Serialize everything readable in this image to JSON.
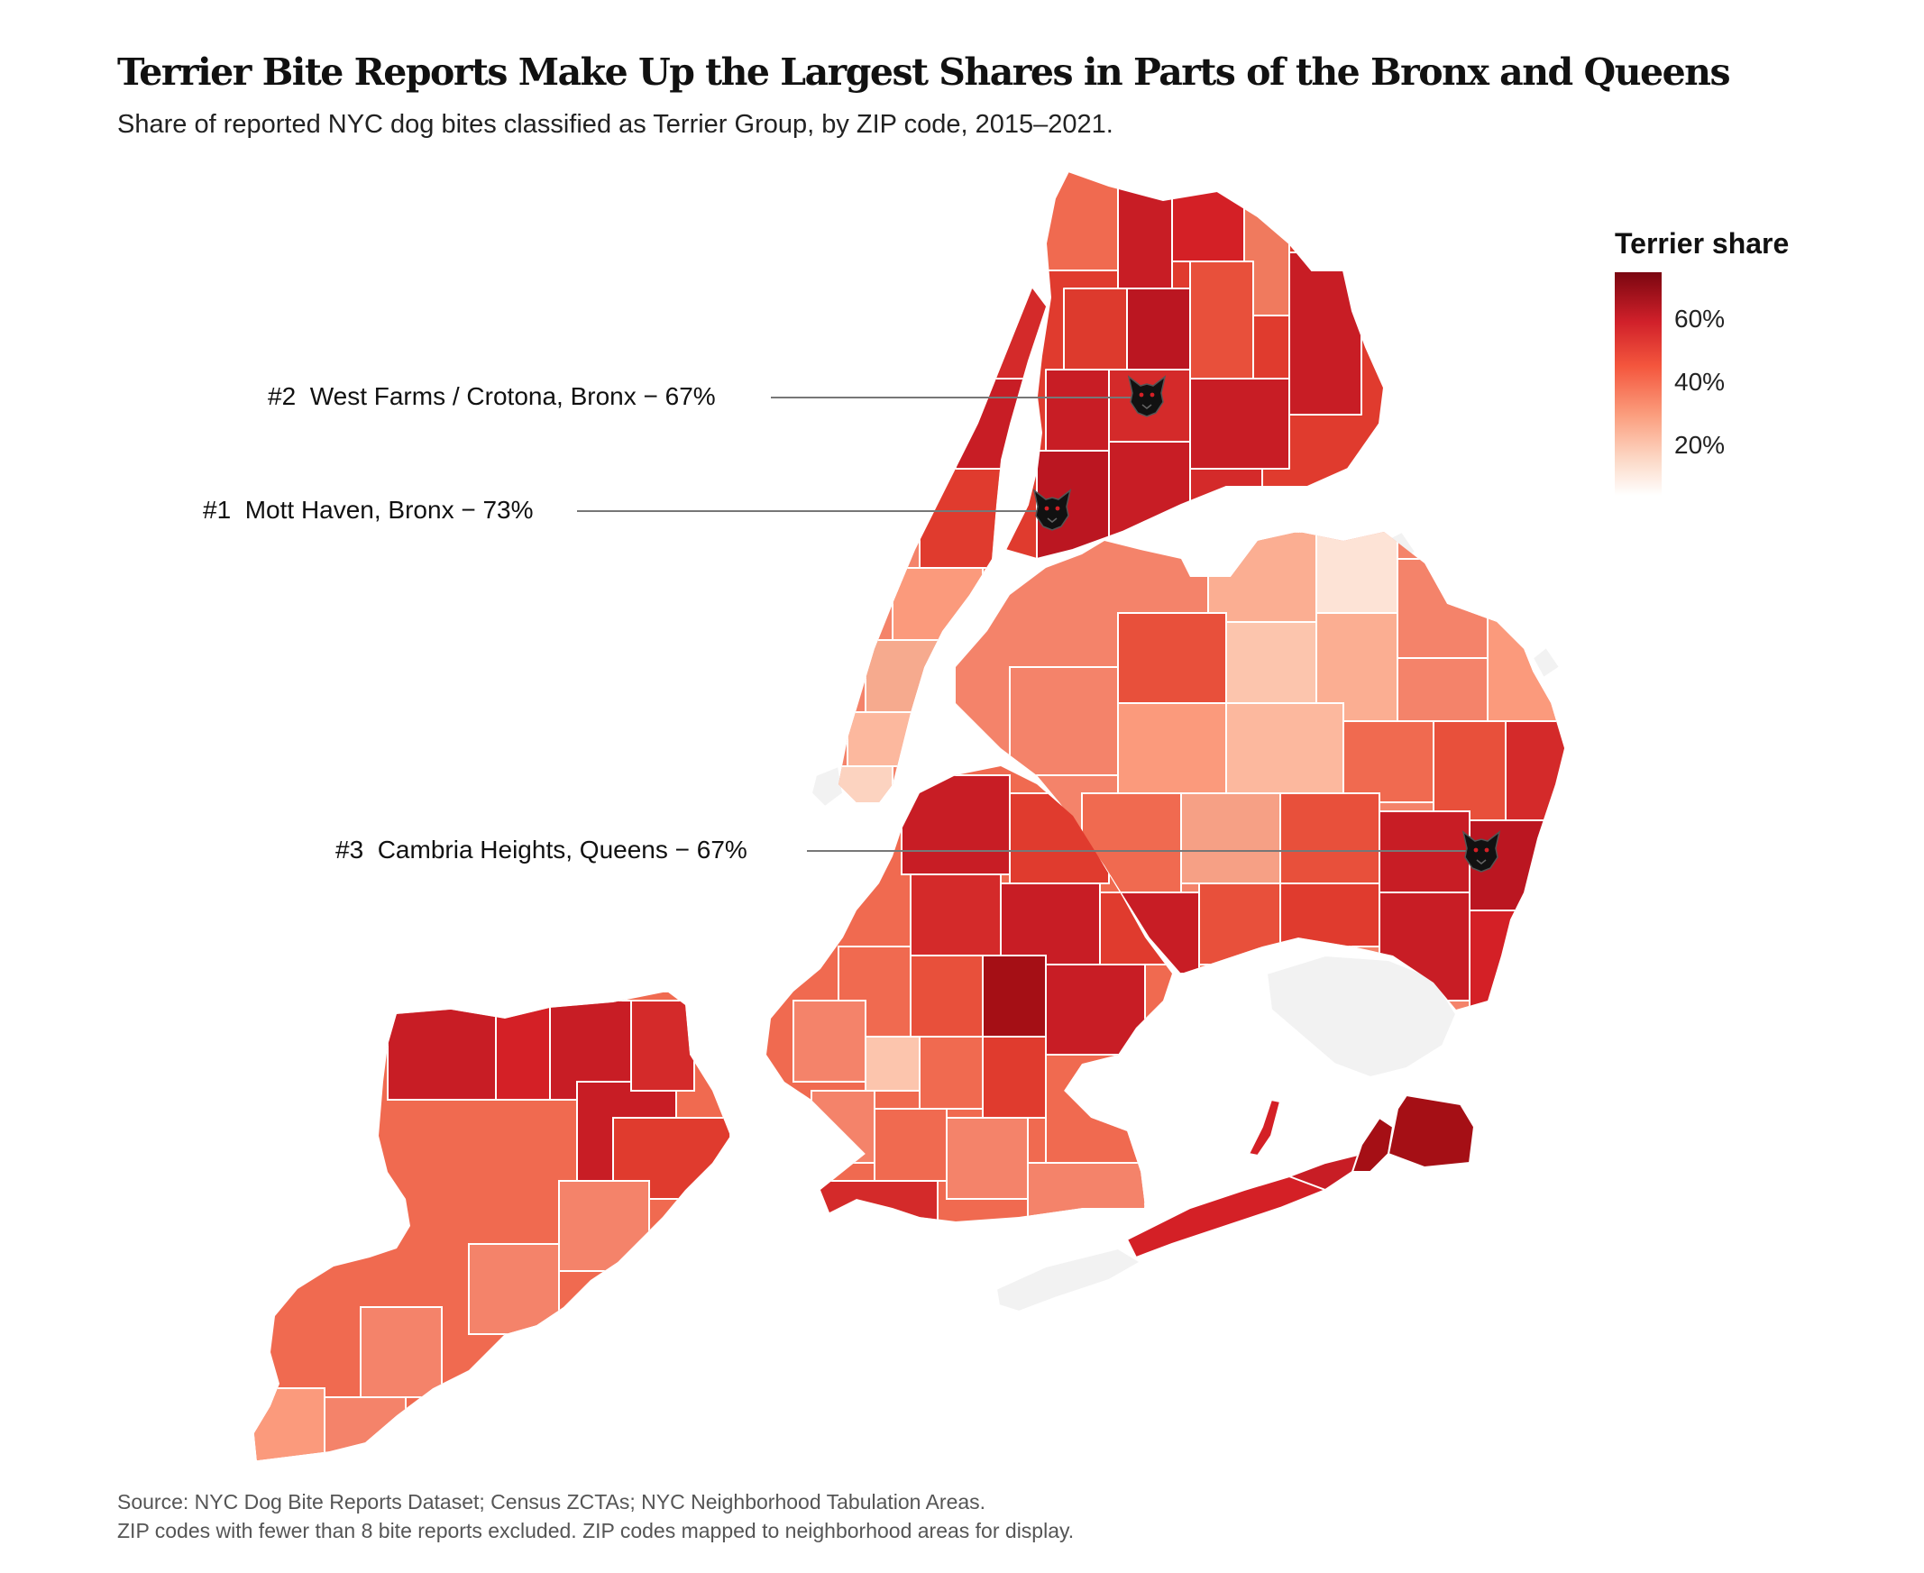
{
  "title": "Terrier Bite Reports Make Up the Largest Shares in Parts of the Bronx and Queens",
  "subtitle": "Share of reported NYC dog bites classified as Terrier Group, by ZIP code, 2015–2021.",
  "legend": {
    "title": "Terrier share",
    "ticks": [
      "60%",
      "40%",
      "20%"
    ],
    "tick_values": [
      0.6,
      0.4,
      0.2
    ],
    "range": [
      0.0,
      0.75
    ],
    "colors": {
      "low": "#ffffff",
      "mid": "#f4563d",
      "high": "#7a0610",
      "excluded": "#f2f2f2"
    }
  },
  "callouts": [
    {
      "label": "#2  West Farms / Crotona, Bronx − 67%",
      "icon": "dog-head-icon"
    },
    {
      "label": "#1  Mott Haven, Bronx − 73%",
      "icon": "dog-head-icon"
    },
    {
      "label": "#3  Cambria Heights, Queens − 67%",
      "icon": "dog-head-icon"
    }
  ],
  "source": {
    "line1": "Source: NYC Dog Bite Reports Dataset; Census ZCTAs; NYC Neighborhood Tabulation Areas.",
    "line2": "ZIP codes with fewer than 8 bite reports excluded. ZIP codes mapped to neighborhood areas for display."
  }
}
